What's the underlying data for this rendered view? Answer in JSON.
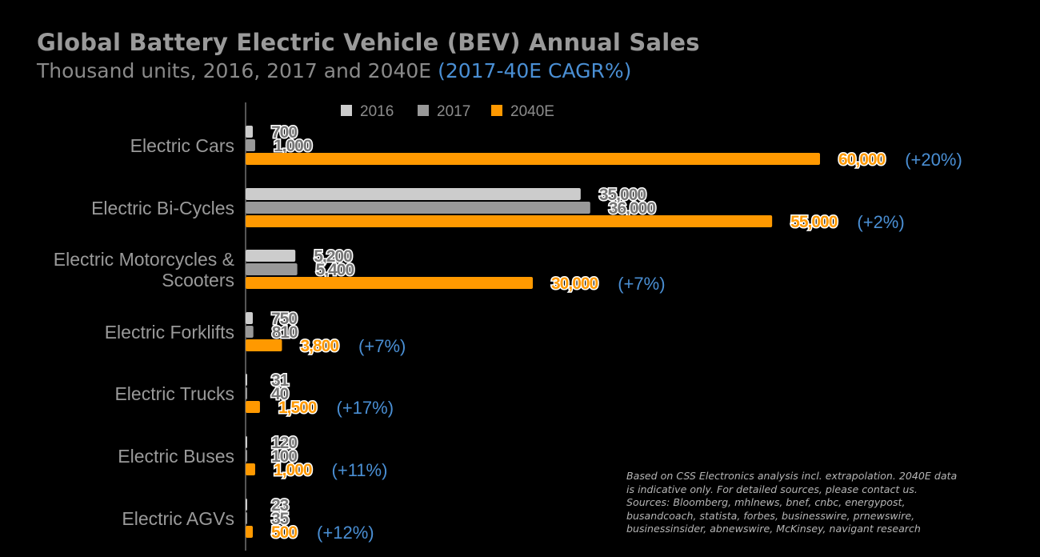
{
  "header": {
    "title": "Global Battery Electric Vehicle (BEV) Annual Sales",
    "subtitle": "Thousand units, 2016, 2017 and 2040E",
    "subtitle_highlight": "(2017-40E CAGR%)"
  },
  "footnote": "Based on CSS Electronics analysis incl. extrapolation. 2040E data\nis indicative only. For detailed sources, please contact us.\nSources: Bloomberg, mhlnews, bnef, cnbc, energypost,\nbusandcoach, statista, forbes, businesswire, prnewswire,\nbusinessinsider, abnewswire, McKinsey, navigant research",
  "chart_data": {
    "type": "bar",
    "orientation": "horizontal",
    "unit": "Thousand units",
    "categories": [
      [
        "Electric Cars"
      ],
      [
        "Electric Bi-Cycles"
      ],
      [
        "Electric Motorcycles &",
        "Scooters"
      ],
      [
        "Electric Forklifts"
      ],
      [
        "Electric Trucks"
      ],
      [
        "Electric Buses"
      ],
      [
        "Electric AGVs"
      ]
    ],
    "series": [
      {
        "name": "2016",
        "color": "#cccccc",
        "label_color": "#555555",
        "values": [
          700,
          35000,
          5200,
          750,
          31,
          120,
          23
        ],
        "labels": [
          "700",
          "35,000",
          "5,200",
          "750",
          "31",
          "120",
          "23"
        ]
      },
      {
        "name": "2017",
        "color": "#999999",
        "label_color": "#555555",
        "values": [
          1000,
          36000,
          5400,
          810,
          40,
          100,
          35
        ],
        "labels": [
          "1,000",
          "36,000",
          "5,400",
          "810",
          "40",
          "100",
          "35"
        ]
      },
      {
        "name": "2040E",
        "color": "#ff9900",
        "label_color": "#ff9900",
        "values": [
          60000,
          55000,
          30000,
          3800,
          1500,
          1000,
          500
        ],
        "labels": [
          "60,000",
          "55,000",
          "30,000",
          "3,800",
          "1,500",
          "1,000",
          "500"
        ]
      }
    ],
    "cagr": [
      "(+20%)",
      "(+2%)",
      "(+7%)",
      "(+7%)",
      "(+17%)",
      "(+11%)",
      "(+12%)"
    ],
    "xlim": [
      0,
      60000
    ],
    "legend": "top",
    "grid": false,
    "colors": {
      "cagr": "#4a8fd4",
      "axis": "#555555"
    }
  }
}
